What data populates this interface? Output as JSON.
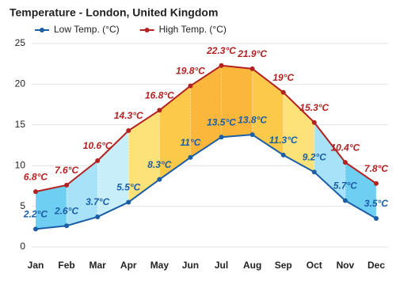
{
  "chart_data": {
    "type": "line",
    "title": "Temperature - London, United Kingdom",
    "categories": [
      "Jan",
      "Feb",
      "Mar",
      "Apr",
      "May",
      "Jun",
      "Jul",
      "Aug",
      "Sep",
      "Oct",
      "Nov",
      "Dec"
    ],
    "series": [
      {
        "name": "Low Temp. (°C)",
        "color": "#1b5ea6",
        "values": [
          2.2,
          2.6,
          3.7,
          5.5,
          8.3,
          11,
          13.5,
          13.8,
          11.3,
          9.2,
          5.7,
          3.5
        ],
        "value_labels": [
          "2.2°C",
          "2.6°C",
          "3.7°C",
          "5.5°C",
          "8.3°C",
          "11°C",
          "13.5°C",
          "13.8°C",
          "11.3°C",
          "9.2°C",
          "5.7°C",
          "3.5°C"
        ]
      },
      {
        "name": "High Temp. (°C)",
        "color": "#b22222",
        "values": [
          6.8,
          7.6,
          10.6,
          14.3,
          16.8,
          19.8,
          22.3,
          21.9,
          19,
          15.3,
          10.4,
          7.8
        ],
        "value_labels": [
          "6.8°C",
          "7.6°C",
          "10.6°C",
          "14.3°C",
          "16.8°C",
          "19.8°C",
          "22.3°C",
          "21.9°C",
          "19°C",
          "15.3°C",
          "10.4°C",
          "7.8°C"
        ]
      }
    ],
    "fill_colors": [
      "#6fcff2",
      "#a8e2f8",
      "#c8eefa",
      "#fde27a",
      "#fcc94a",
      "#fbb73c",
      "#fbb73c",
      "#fcc94a",
      "#fde27a",
      "#a8e2f8",
      "#6fcff2"
    ],
    "ylim": [
      0,
      25
    ],
    "yticks": [
      0,
      5,
      10,
      15,
      20,
      25
    ],
    "grid": true,
    "legend": "top"
  }
}
